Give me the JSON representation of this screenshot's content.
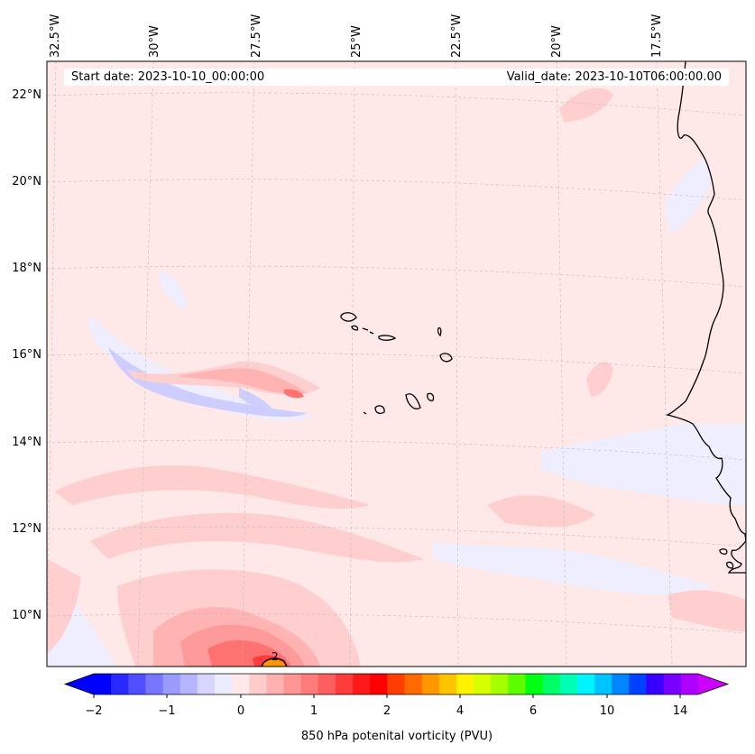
{
  "header": {
    "start_date": "Start date: 2023-10-10_00:00:00",
    "valid_date": "Valid_date: 2023-10-10T06:00:00.00"
  },
  "longitude_labels": [
    "32.5°W",
    "30°W",
    "27.5°W",
    "25°W",
    "22.5°W",
    "20°W",
    "17.5°W"
  ],
  "latitude_labels": [
    "22°N",
    "20°N",
    "18°N",
    "16°N",
    "14°N",
    "12°N",
    "10°N"
  ],
  "contour_label": "2",
  "colorbar": {
    "ticks": [
      "−2",
      "−1",
      "0",
      "1",
      "2",
      "4",
      "6",
      "10",
      "14"
    ],
    "label": "850 hPa potenital vorticity (PVU)",
    "colors": [
      "#0000ff",
      "#2a2aff",
      "#4f4fff",
      "#7676ff",
      "#9b9bff",
      "#b5b5ff",
      "#d6d6ff",
      "#ececff",
      "#ffe8e8",
      "#ffcccc",
      "#ffb0b0",
      "#ff9696",
      "#ff7a7a",
      "#ff5e5e",
      "#ff3c3c",
      "#ff1a1a",
      "#ff0000",
      "#ff3d00",
      "#ff6a00",
      "#ff9700",
      "#ffc400",
      "#fff200",
      "#d8ff00",
      "#a4ff00",
      "#5dff00",
      "#00ff13",
      "#00ff66",
      "#00ffb6",
      "#00f4ff",
      "#00c4ff",
      "#0084ff",
      "#0040ff",
      "#3a00ff",
      "#7700ff",
      "#ad00ff"
    ],
    "under_color": "#0000ff",
    "over_color": "#cc00ff"
  },
  "map_colors": {
    "background": "#ffe8e8",
    "light_pink": "#ffcfcf",
    "pink": "#ffb3b3",
    "red": "#ff7272",
    "light_blue": "#eeeeff",
    "blue": "#cdcdff",
    "coast": "#000000"
  }
}
